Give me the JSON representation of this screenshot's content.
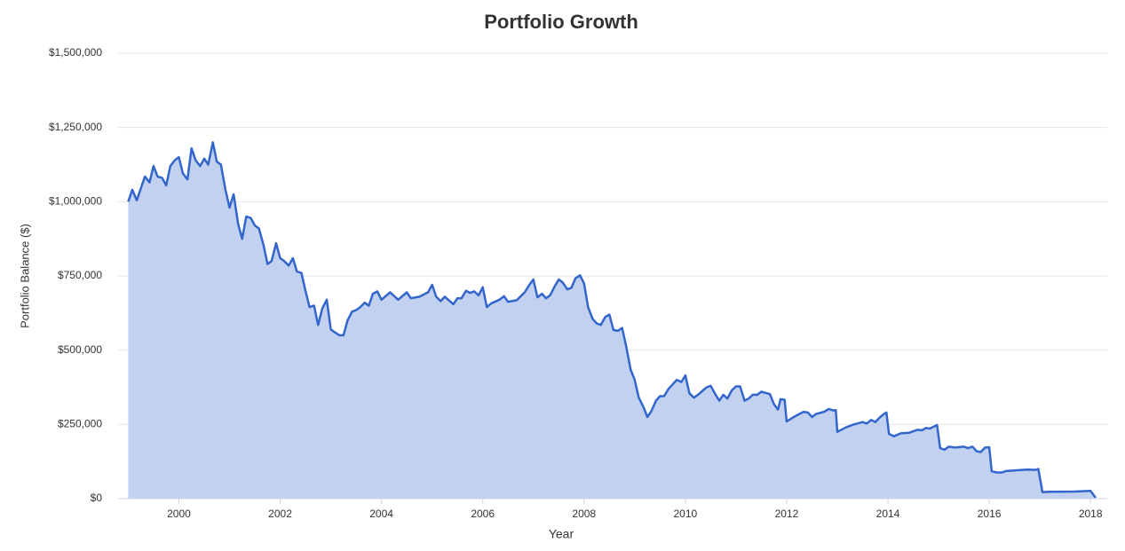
{
  "chart_data": {
    "type": "area",
    "title": "Portfolio Growth",
    "x_label": "Year",
    "y_label": "Portfolio Balance ($)",
    "color": "#3366cc",
    "fill_color": "#c1d1ef",
    "grid": true,
    "xlim": [
      1998.8,
      2018.33
    ],
    "ylim": [
      0,
      1500000
    ],
    "xticks": [
      2000,
      2002,
      2004,
      2006,
      2008,
      2010,
      2012,
      2014,
      2016,
      2018
    ],
    "yticks": [
      {
        "value": 0,
        "label": "$0"
      },
      {
        "value": 250000,
        "label": "$250,000"
      },
      {
        "value": 500000,
        "label": "$500,000"
      },
      {
        "value": 750000,
        "label": "$750,000"
      },
      {
        "value": 1000000,
        "label": "$1,000,000"
      },
      {
        "value": 1250000,
        "label": "$1,250,000"
      },
      {
        "value": 1500000,
        "label": "$1,500,000"
      }
    ],
    "x": [
      1999.0,
      1999.08,
      1999.17,
      1999.33,
      1999.42,
      1999.5,
      1999.58,
      1999.67,
      1999.75,
      1999.83,
      1999.92,
      2000.0,
      2000.08,
      2000.17,
      2000.25,
      2000.33,
      2000.42,
      2000.5,
      2000.58,
      2000.67,
      2000.75,
      2000.83,
      2000.92,
      2001.0,
      2001.08,
      2001.17,
      2001.25,
      2001.33,
      2001.42,
      2001.5,
      2001.58,
      2001.67,
      2001.75,
      2001.83,
      2001.92,
      2002.0,
      2002.08,
      2002.17,
      2002.25,
      2002.33,
      2002.42,
      2002.5,
      2002.58,
      2002.67,
      2002.75,
      2002.83,
      2002.92,
      2003.0,
      2003.08,
      2003.17,
      2003.25,
      2003.33,
      2003.42,
      2003.5,
      2003.58,
      2003.67,
      2003.75,
      2003.83,
      2003.92,
      2004.0,
      2004.17,
      2004.33,
      2004.5,
      2004.58,
      2004.75,
      2004.92,
      2005.0,
      2005.08,
      2005.17,
      2005.25,
      2005.42,
      2005.5,
      2005.58,
      2005.67,
      2005.75,
      2005.83,
      2005.92,
      2006.0,
      2006.08,
      2006.17,
      2006.33,
      2006.42,
      2006.5,
      2006.67,
      2006.83,
      2006.92,
      2007.0,
      2007.08,
      2007.17,
      2007.25,
      2007.33,
      2007.42,
      2007.5,
      2007.58,
      2007.67,
      2007.75,
      2007.83,
      2007.92,
      2008.0,
      2008.08,
      2008.17,
      2008.25,
      2008.33,
      2008.42,
      2008.5,
      2008.58,
      2008.67,
      2008.75,
      2008.83,
      2008.92,
      2009.0,
      2009.08,
      2009.17,
      2009.25,
      2009.33,
      2009.42,
      2009.5,
      2009.58,
      2009.67,
      2009.75,
      2009.83,
      2009.92,
      2010.0,
      2010.08,
      2010.17,
      2010.25,
      2010.42,
      2010.5,
      2010.58,
      2010.67,
      2010.75,
      2010.83,
      2010.92,
      2011.0,
      2011.08,
      2011.17,
      2011.25,
      2011.33,
      2011.42,
      2011.5,
      2011.67,
      2011.75,
      2011.83,
      2011.88,
      2011.96,
      2012.0,
      2012.17,
      2012.33,
      2012.42,
      2012.5,
      2012.58,
      2012.75,
      2012.83,
      2012.92,
      2012.97,
      2013.0,
      2013.17,
      2013.33,
      2013.5,
      2013.58,
      2013.67,
      2013.75,
      2013.83,
      2013.92,
      2013.97,
      2014.02,
      2014.12,
      2014.25,
      2014.42,
      2014.58,
      2014.67,
      2014.75,
      2014.83,
      2014.97,
      2015.03,
      2015.12,
      2015.2,
      2015.33,
      2015.5,
      2015.58,
      2015.67,
      2015.75,
      2015.83,
      2015.92,
      2016.0,
      2016.05,
      2016.15,
      2016.25,
      2016.33,
      2016.5,
      2016.67,
      2016.75,
      2016.92,
      2016.97,
      2017.05,
      2017.2,
      2017.67,
      2018.0,
      2018.1
    ],
    "values": [
      1000000,
      1040000,
      1005000,
      1085000,
      1065000,
      1120000,
      1085000,
      1080000,
      1055000,
      1120000,
      1140000,
      1150000,
      1095000,
      1075000,
      1180000,
      1140000,
      1120000,
      1145000,
      1125000,
      1200000,
      1135000,
      1125000,
      1040000,
      980000,
      1025000,
      925000,
      875000,
      950000,
      945000,
      920000,
      910000,
      855000,
      790000,
      800000,
      860000,
      810000,
      800000,
      785000,
      810000,
      765000,
      760000,
      700000,
      645000,
      650000,
      585000,
      640000,
      670000,
      570000,
      560000,
      550000,
      550000,
      600000,
      630000,
      635000,
      645000,
      660000,
      650000,
      690000,
      698000,
      670000,
      695000,
      670000,
      695000,
      675000,
      680000,
      695000,
      720000,
      680000,
      665000,
      680000,
      655000,
      675000,
      675000,
      700000,
      693000,
      698000,
      685000,
      712000,
      645000,
      658000,
      670000,
      682000,
      663000,
      668000,
      695000,
      720000,
      738000,
      678000,
      690000,
      675000,
      685000,
      715000,
      738000,
      728000,
      705000,
      710000,
      742000,
      752000,
      725000,
      645000,
      605000,
      590000,
      585000,
      612000,
      620000,
      568000,
      565000,
      575000,
      515000,
      435000,
      400000,
      340000,
      310000,
      275000,
      295000,
      330000,
      345000,
      345000,
      370000,
      385000,
      400000,
      393000,
      415000,
      355000,
      340000,
      350000,
      375000,
      380000,
      355000,
      330000,
      350000,
      337000,
      365000,
      378000,
      378000,
      330000,
      337000,
      350000,
      350000,
      360000,
      352000,
      318000,
      300000,
      335000,
      333000,
      260000,
      278000,
      292000,
      290000,
      275000,
      285000,
      293000,
      302000,
      297000,
      298000,
      225000,
      240000,
      250000,
      258000,
      253000,
      265000,
      258000,
      272000,
      285000,
      290000,
      218000,
      210000,
      220000,
      222000,
      232000,
      230000,
      238000,
      236000,
      248000,
      170000,
      165000,
      175000,
      172000,
      175000,
      170000,
      175000,
      160000,
      157000,
      172000,
      173000,
      92000,
      88000,
      88000,
      93000,
      95000,
      97000,
      98000,
      97000,
      100000,
      22000,
      23000,
      24000,
      26000,
      3000
    ]
  }
}
